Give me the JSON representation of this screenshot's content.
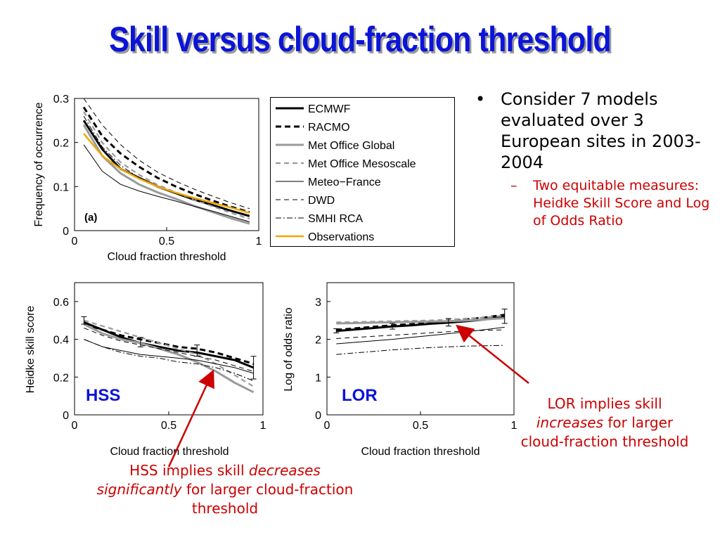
{
  "title": "Skill versus cloud-fraction threshold",
  "bullets": {
    "main": "Consider 7 models evaluated over 3 European sites in 2003-2004",
    "sub": "Two equitable measures: Heidke Skill Score and Log of Odds Ratio"
  },
  "notes": {
    "lor": {
      "pre": "LOR implies skill ",
      "em": "increases",
      "post": "  for larger cloud-fraction threshold"
    },
    "hss": {
      "pre": "HSS implies skill ",
      "em1": "decreases significantly",
      "post": "  for larger cloud-fraction threshold"
    }
  },
  "colors": {
    "title": "#0b14d8",
    "note": "#cc0000",
    "observations": "#f0a800",
    "gray": "#9a9a9a"
  },
  "legend": [
    "ECMWF",
    "RACMO",
    "Met Office Global",
    "Met Office Mesoscale",
    "Meteo−France",
    "DWD",
    "SMHI RCA",
    "Observations"
  ],
  "chart_data": [
    {
      "id": "freq",
      "type": "line",
      "xlabel": "Cloud fraction threshold",
      "ylabel": "Frequency of occurrence",
      "panel_label": "(a)",
      "xlim": [
        0,
        1
      ],
      "ylim": [
        0,
        0.3
      ],
      "xticks": [
        "0",
        "0.5",
        "1"
      ],
      "yticks": [
        "0",
        "0.1",
        "0.2",
        "0.3"
      ],
      "x": [
        0.05,
        0.15,
        0.25,
        0.35,
        0.45,
        0.55,
        0.65,
        0.75,
        0.85,
        0.95
      ],
      "series": [
        {
          "name": "ECMWF",
          "values": [
            0.25,
            0.185,
            0.14,
            0.12,
            0.1,
            0.085,
            0.07,
            0.058,
            0.045,
            0.033
          ]
        },
        {
          "name": "RACMO",
          "values": [
            0.28,
            0.215,
            0.175,
            0.145,
            0.12,
            0.1,
            0.083,
            0.068,
            0.054,
            0.042
          ]
        },
        {
          "name": "Met Office Global",
          "values": [
            0.24,
            0.17,
            0.13,
            0.105,
            0.087,
            0.072,
            0.056,
            0.042,
            0.028,
            0.016
          ]
        },
        {
          "name": "Met Office Mesoscale",
          "values": [
            0.27,
            0.2,
            0.155,
            0.127,
            0.104,
            0.087,
            0.07,
            0.055,
            0.04,
            0.027
          ]
        },
        {
          "name": "Meteo−France",
          "values": [
            0.195,
            0.135,
            0.105,
            0.09,
            0.078,
            0.067,
            0.055,
            0.044,
            0.032,
            0.02
          ]
        },
        {
          "name": "DWD",
          "values": [
            0.3,
            0.24,
            0.195,
            0.16,
            0.133,
            0.112,
            0.094,
            0.078,
            0.063,
            0.05
          ]
        },
        {
          "name": "SMHI RCA",
          "values": [
            0.26,
            0.19,
            0.148,
            0.12,
            0.1,
            0.085,
            0.071,
            0.058,
            0.046,
            0.035
          ]
        },
        {
          "name": "Observations",
          "values": [
            0.22,
            0.17,
            0.14,
            0.118,
            0.1,
            0.086,
            0.074,
            0.063,
            0.052,
            0.04
          ]
        }
      ]
    },
    {
      "id": "hss",
      "type": "line",
      "xlabel": "Cloud fraction threshold",
      "ylabel": "Heidke skill score",
      "panel_label": "HSS",
      "xlim": [
        0,
        1
      ],
      "ylim": [
        0,
        0.7
      ],
      "xticks": [
        "0",
        "0.5",
        "1"
      ],
      "yticks": [
        "0",
        "0.2",
        "0.4",
        "0.6"
      ],
      "x": [
        0.05,
        0.15,
        0.25,
        0.35,
        0.45,
        0.55,
        0.65,
        0.75,
        0.85,
        0.95
      ],
      "series": [
        {
          "name": "ECMWF",
          "values": [
            0.49,
            0.45,
            0.41,
            0.38,
            0.36,
            0.34,
            0.33,
            0.31,
            0.29,
            0.25
          ]
        },
        {
          "name": "RACMO",
          "values": [
            0.48,
            0.45,
            0.42,
            0.4,
            0.38,
            0.36,
            0.35,
            0.33,
            0.3,
            0.27
          ]
        },
        {
          "name": "Met Office Global",
          "values": [
            0.48,
            0.43,
            0.4,
            0.38,
            0.35,
            0.32,
            0.28,
            0.23,
            0.17,
            0.12
          ]
        },
        {
          "name": "Met Office Mesoscale",
          "values": [
            0.5,
            0.47,
            0.44,
            0.41,
            0.38,
            0.35,
            0.32,
            0.27,
            0.21,
            0.15
          ]
        },
        {
          "name": "Meteo−France",
          "values": [
            0.4,
            0.36,
            0.34,
            0.32,
            0.31,
            0.3,
            0.29,
            0.27,
            0.25,
            0.22
          ]
        },
        {
          "name": "DWD",
          "values": [
            0.46,
            0.42,
            0.39,
            0.37,
            0.35,
            0.33,
            0.31,
            0.29,
            0.26,
            0.23
          ]
        },
        {
          "name": "SMHI RCA",
          "values": [
            0.4,
            0.36,
            0.33,
            0.31,
            0.3,
            0.28,
            0.27,
            0.25,
            0.22,
            0.18
          ]
        }
      ],
      "error_bars": [
        {
          "x": 0.05,
          "low": 0.48,
          "high": 0.52
        },
        {
          "x": 0.35,
          "low": 0.36,
          "high": 0.41
        },
        {
          "x": 0.65,
          "low": 0.31,
          "high": 0.37
        },
        {
          "x": 0.95,
          "low": 0.19,
          "high": 0.31
        }
      ]
    },
    {
      "id": "lor",
      "type": "line",
      "xlabel": "Cloud fraction threshold",
      "ylabel": "Log of odds ratio",
      "panel_label": "LOR",
      "xlim": [
        0,
        1
      ],
      "ylim": [
        0,
        3.5
      ],
      "xticks": [
        "0",
        "0.5",
        "1"
      ],
      "yticks": [
        "0",
        "1",
        "2",
        "3"
      ],
      "x": [
        0.05,
        0.15,
        0.25,
        0.35,
        0.45,
        0.55,
        0.65,
        0.75,
        0.85,
        0.95
      ],
      "series": [
        {
          "name": "ECMWF",
          "values": [
            2.22,
            2.26,
            2.3,
            2.34,
            2.37,
            2.41,
            2.44,
            2.48,
            2.53,
            2.6
          ]
        },
        {
          "name": "RACMO",
          "values": [
            2.25,
            2.29,
            2.33,
            2.37,
            2.4,
            2.44,
            2.48,
            2.53,
            2.58,
            2.65
          ]
        },
        {
          "name": "Met Office Global",
          "values": [
            2.42,
            2.43,
            2.44,
            2.45,
            2.46,
            2.47,
            2.48,
            2.5,
            2.53,
            2.56
          ]
        },
        {
          "name": "Met Office Mesoscale",
          "values": [
            2.45,
            2.46,
            2.47,
            2.48,
            2.49,
            2.5,
            2.52,
            2.55,
            2.58,
            2.63
          ]
        },
        {
          "name": "Meteo−France",
          "values": [
            1.88,
            1.92,
            1.96,
            2.0,
            2.05,
            2.1,
            2.15,
            2.2,
            2.26,
            2.32
          ]
        },
        {
          "name": "DWD",
          "values": [
            2.02,
            2.05,
            2.08,
            2.11,
            2.14,
            2.17,
            2.2,
            2.22,
            2.24,
            2.25
          ]
        },
        {
          "name": "SMHI RCA",
          "values": [
            1.6,
            1.64,
            1.68,
            1.72,
            1.75,
            1.78,
            1.8,
            1.82,
            1.83,
            1.84
          ]
        }
      ],
      "error_bars": [
        {
          "x": 0.05,
          "low": 2.17,
          "high": 2.28
        },
        {
          "x": 0.35,
          "low": 2.27,
          "high": 2.42
        },
        {
          "x": 0.65,
          "low": 2.35,
          "high": 2.55
        },
        {
          "x": 0.95,
          "low": 2.42,
          "high": 2.8
        }
      ]
    }
  ]
}
